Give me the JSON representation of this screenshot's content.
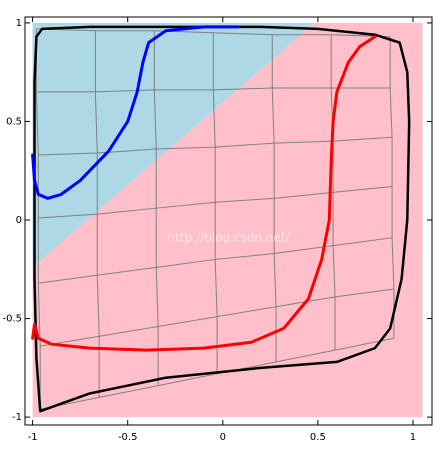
{
  "chart_data": {
    "type": "curves",
    "xlim": [
      -1.04,
      1.1
    ],
    "ylim": [
      -1.04,
      1.03
    ],
    "xticks": [
      -1,
      -0.5,
      0,
      0.5,
      1
    ],
    "yticks": [
      -1,
      -0.5,
      0,
      0.5,
      1
    ],
    "watermark": "http://blog.csdn.net/",
    "regions": [
      {
        "color": "#ffc0cb",
        "x": [
          -1,
          1.05,
          1.05,
          -1
        ],
        "y": [
          1,
          1,
          -1,
          -1
        ]
      },
      {
        "color": "#add8e6",
        "x": [
          -1,
          0.48,
          -1
        ],
        "y": [
          1,
          1,
          -0.24
        ]
      }
    ],
    "mesh": {
      "color": "#808080",
      "x": [
        [
          -0.98,
          -0.67,
          -0.36,
          -0.05,
          0.26,
          0.57,
          0.88
        ],
        [
          -0.98,
          -0.67,
          -0.36,
          -0.05,
          0.26,
          0.57,
          0.88
        ],
        [
          -0.97,
          -0.66,
          -0.35,
          -0.04,
          0.27,
          0.58,
          0.89
        ],
        [
          -0.97,
          -0.66,
          -0.35,
          -0.04,
          0.27,
          0.58,
          0.89
        ],
        [
          -0.97,
          -0.66,
          -0.35,
          -0.04,
          0.27,
          0.58,
          0.89
        ],
        [
          -0.96,
          -0.65,
          -0.34,
          -0.03,
          0.28,
          0.59,
          0.9
        ],
        [
          -0.96,
          -0.65,
          -0.34,
          -0.03,
          0.28,
          0.59,
          0.9
        ]
      ],
      "y": [
        [
          0.97,
          0.96,
          0.96,
          0.95,
          0.94,
          0.94,
          0.93
        ],
        [
          0.65,
          0.65,
          0.66,
          0.66,
          0.67,
          0.67,
          0.67
        ],
        [
          0.33,
          0.34,
          0.36,
          0.37,
          0.39,
          0.4,
          0.42
        ],
        [
          0.01,
          0.03,
          0.06,
          0.09,
          0.11,
          0.14,
          0.17
        ],
        [
          -0.32,
          -0.28,
          -0.24,
          -0.2,
          -0.17,
          -0.13,
          -0.09
        ],
        [
          -0.64,
          -0.59,
          -0.54,
          -0.49,
          -0.44,
          -0.39,
          -0.35
        ],
        [
          -0.96,
          -0.9,
          -0.84,
          -0.78,
          -0.72,
          -0.66,
          -0.6
        ]
      ]
    },
    "series": [
      {
        "color": "#000000",
        "width": 2.5,
        "x": [
          -0.96,
          -0.98,
          -0.99,
          -0.99,
          -0.99,
          -0.98,
          -0.95,
          -0.7,
          -0.3,
          0.2,
          0.5,
          0.8,
          0.93,
          0.97,
          0.98,
          0.97,
          0.94,
          0.88,
          0.8,
          0.6,
          0.2,
          -0.3,
          -0.7,
          -0.96
        ],
        "y": [
          -0.97,
          -0.7,
          -0.3,
          0.2,
          0.7,
          0.93,
          0.97,
          0.98,
          0.98,
          0.98,
          0.97,
          0.94,
          0.9,
          0.75,
          0.5,
          0,
          -0.3,
          -0.55,
          -0.65,
          -0.72,
          -0.75,
          -0.8,
          -0.88,
          -0.97
        ]
      },
      {
        "color": "#0000ff",
        "width": 3,
        "x": [
          -1,
          -0.99,
          -0.97,
          -0.92,
          -0.85,
          -0.75,
          -0.6,
          -0.5,
          -0.45,
          -0.42,
          -0.39,
          -0.3,
          -0.1,
          0.08
        ],
        "y": [
          0.33,
          0.2,
          0.13,
          0.11,
          0.13,
          0.2,
          0.35,
          0.5,
          0.65,
          0.8,
          0.9,
          0.96,
          0.98,
          0.98
        ]
      },
      {
        "color": "#ff0000",
        "width": 3,
        "x": [
          -1,
          -0.99,
          -0.97,
          -0.9,
          -0.7,
          -0.4,
          -0.1,
          0.15,
          0.32,
          0.45,
          0.52,
          0.56,
          0.57,
          0.58,
          0.6,
          0.66,
          0.72,
          0.8
        ],
        "y": [
          -0.6,
          -0.53,
          -0.6,
          -0.63,
          -0.65,
          -0.66,
          -0.65,
          -0.62,
          -0.55,
          -0.4,
          -0.2,
          0,
          0.3,
          0.5,
          0.65,
          0.8,
          0.88,
          0.93
        ]
      }
    ]
  }
}
